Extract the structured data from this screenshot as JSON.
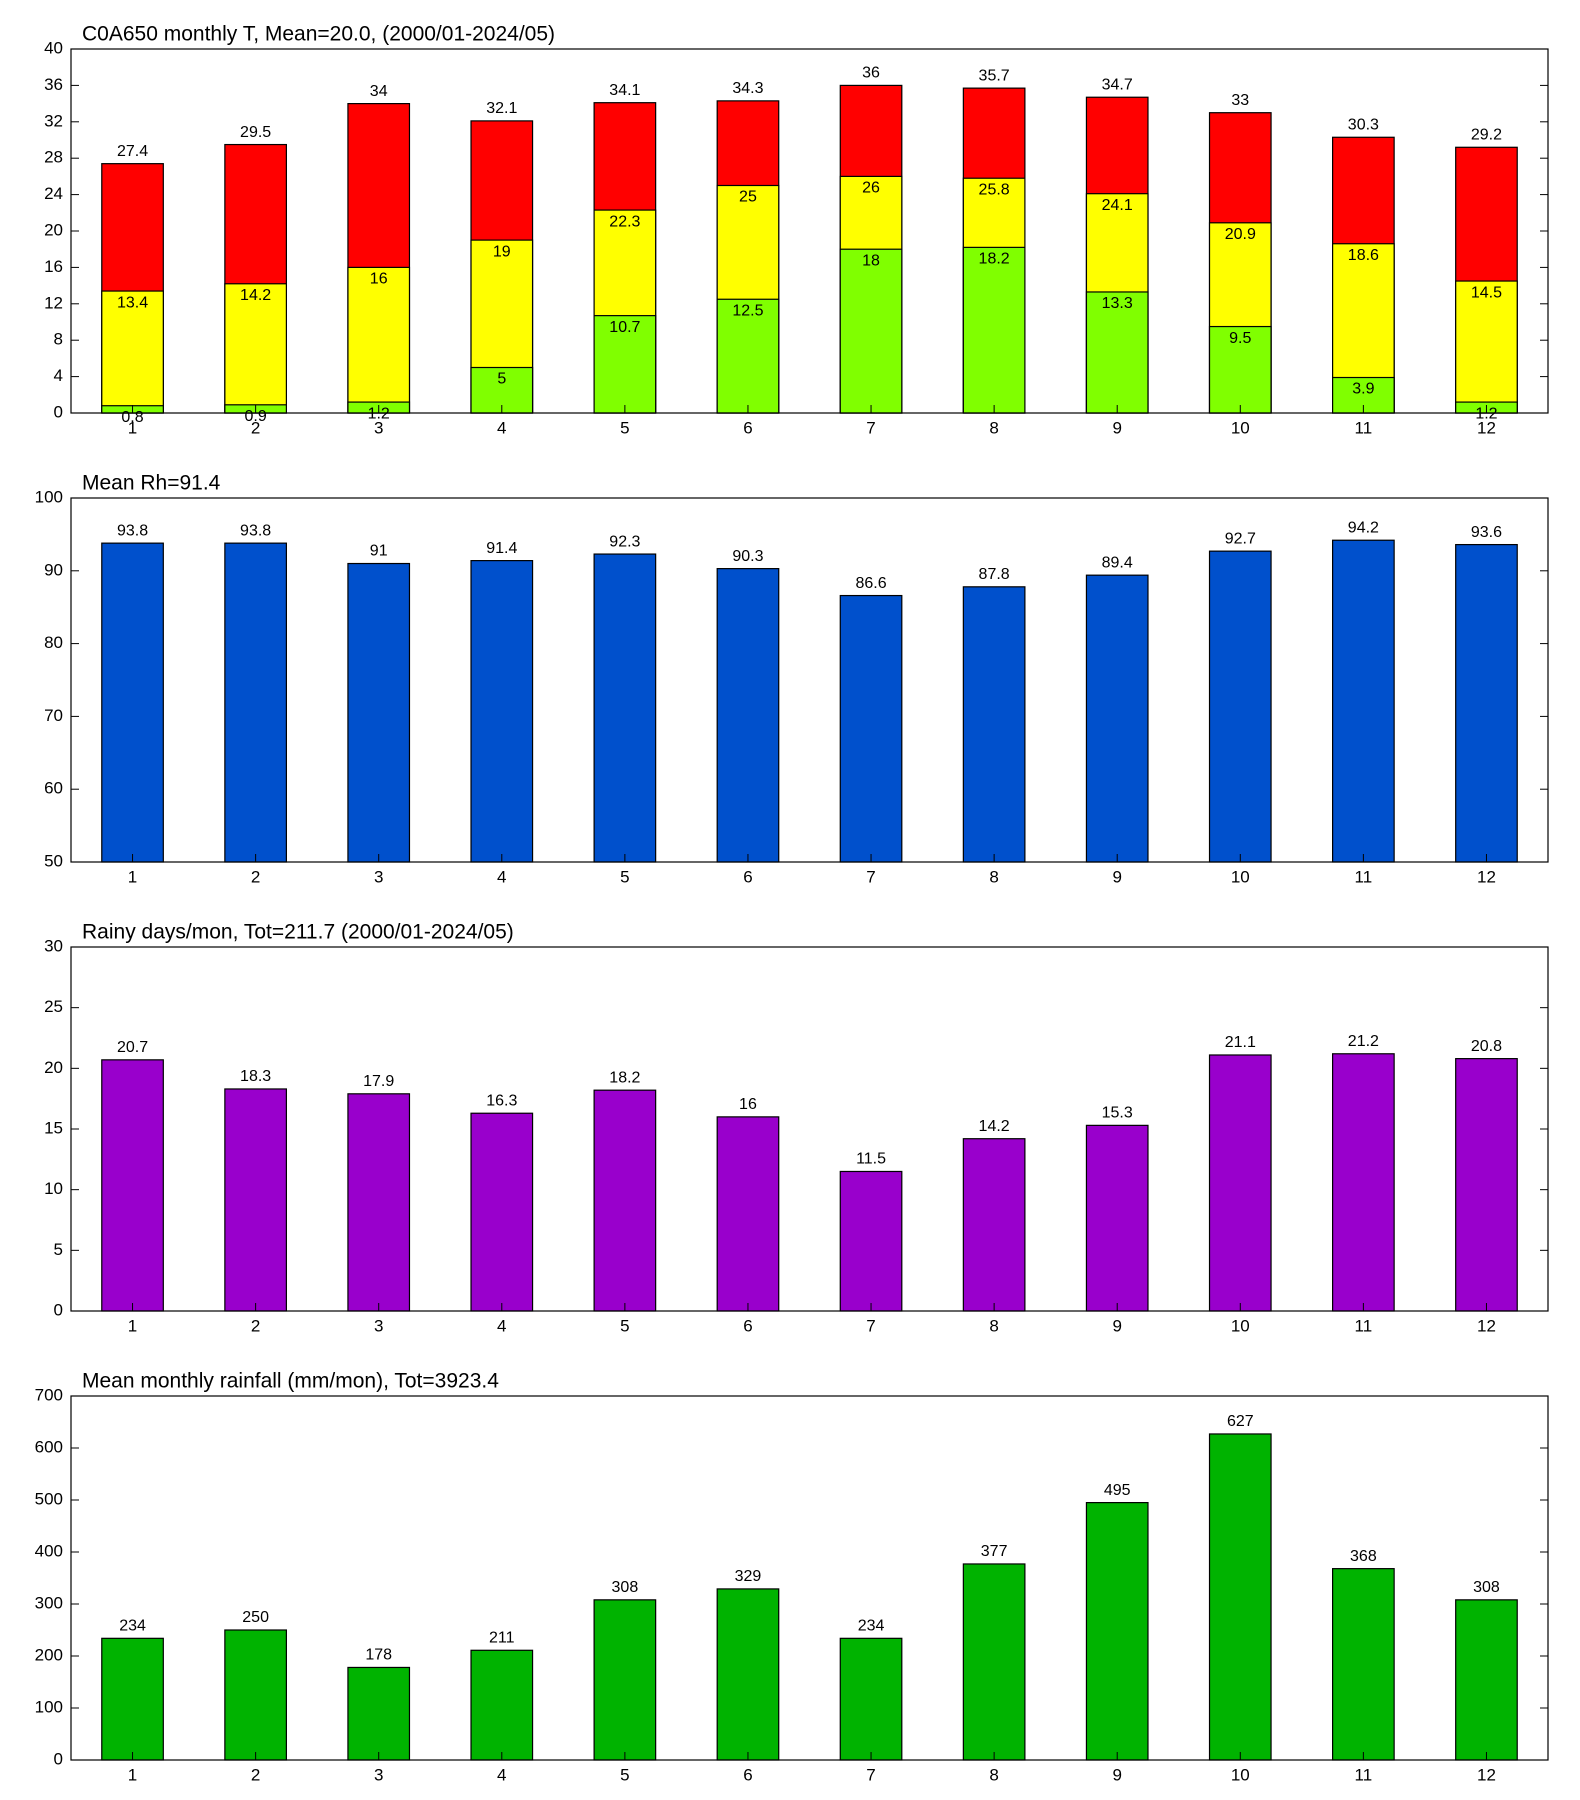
{
  "chart_data": [
    {
      "type": "bar",
      "title": "C0A650 monthly T, Mean=20.0, (2000/01-2024/05)",
      "categories": [
        "1",
        "2",
        "3",
        "4",
        "5",
        "6",
        "7",
        "8",
        "9",
        "10",
        "11",
        "12"
      ],
      "series": [
        {
          "color": "#ff0000",
          "values": [
            27.4,
            29.5,
            34,
            32.1,
            34.1,
            34.3,
            36,
            35.7,
            34.7,
            33,
            30.3,
            29.2
          ]
        },
        {
          "color": "#ffff00",
          "values": [
            13.4,
            14.2,
            16,
            19,
            22.3,
            25,
            26,
            25.8,
            24.1,
            20.9,
            18.6,
            14.5
          ]
        },
        {
          "color": "#80ff00",
          "values": [
            0.8,
            0.9,
            1.2,
            5,
            10.7,
            12.5,
            18,
            18.2,
            13.3,
            9.5,
            3.9,
            1.2
          ]
        }
      ],
      "ylim": [
        0,
        40
      ],
      "yticks": [
        0,
        4,
        8,
        12,
        16,
        20,
        24,
        28,
        32,
        36,
        40
      ]
    },
    {
      "type": "bar",
      "title": "Mean Rh=91.4",
      "categories": [
        "1",
        "2",
        "3",
        "4",
        "5",
        "6",
        "7",
        "8",
        "9",
        "10",
        "11",
        "12"
      ],
      "series": [
        {
          "color": "#0050cc",
          "values": [
            93.8,
            93.8,
            91,
            91.4,
            92.3,
            90.3,
            86.6,
            87.8,
            89.4,
            92.7,
            94.2,
            93.6
          ]
        }
      ],
      "ylim": [
        50,
        100
      ],
      "yticks": [
        50,
        60,
        70,
        80,
        90,
        100
      ]
    },
    {
      "type": "bar",
      "title": "Rainy days/mon, Tot=211.7 (2000/01-2024/05)",
      "categories": [
        "1",
        "2",
        "3",
        "4",
        "5",
        "6",
        "7",
        "8",
        "9",
        "10",
        "11",
        "12"
      ],
      "series": [
        {
          "color": "#9900cc",
          "values": [
            20.7,
            18.3,
            17.9,
            16.3,
            18.2,
            16,
            11.5,
            14.2,
            15.3,
            21.1,
            21.2,
            20.8
          ]
        }
      ],
      "ylim": [
        0,
        30
      ],
      "yticks": [
        0,
        5,
        10,
        15,
        20,
        25,
        30
      ]
    },
    {
      "type": "bar",
      "title": "Mean monthly rainfall (mm/mon), Tot=3923.4",
      "categories": [
        "1",
        "2",
        "3",
        "4",
        "5",
        "6",
        "7",
        "8",
        "9",
        "10",
        "11",
        "12"
      ],
      "series": [
        {
          "color": "#00b300",
          "values": [
            234,
            250,
            178,
            211,
            308,
            329,
            234,
            377,
            495,
            627,
            368,
            308
          ]
        }
      ],
      "ylim": [
        0,
        700
      ],
      "yticks": [
        0,
        100,
        200,
        300,
        400,
        500,
        600,
        700
      ]
    }
  ]
}
